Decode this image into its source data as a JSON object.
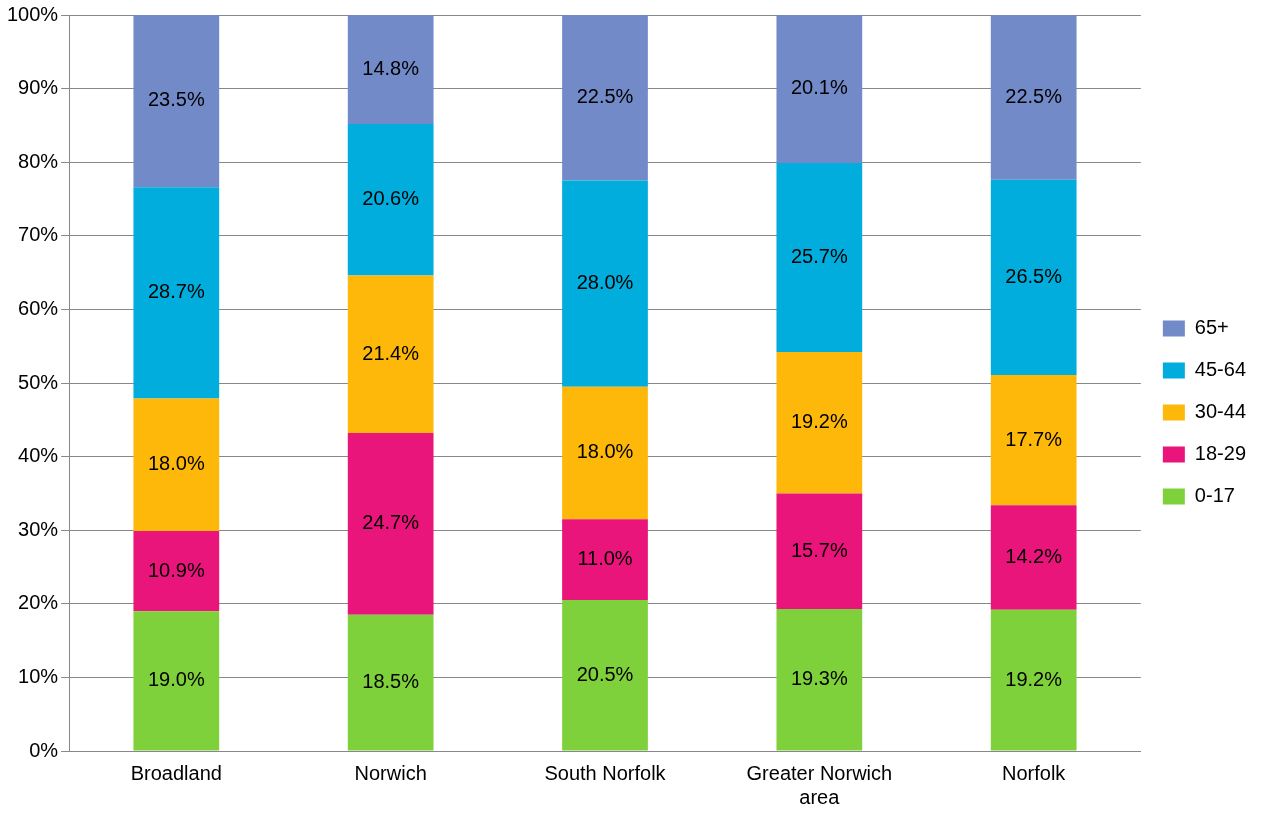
{
  "chart_data": {
    "type": "bar",
    "stacked": true,
    "categories": [
      "Broadland",
      "Norwich",
      "South Norfolk",
      "Greater Norwich area",
      "Norfolk"
    ],
    "series": [
      {
        "name": "0-17",
        "color": "#7fd13b",
        "values": [
          19.0,
          18.5,
          20.5,
          19.3,
          19.2
        ],
        "value_labels": [
          "19.0%",
          "18.5%",
          "20.5%",
          "19.3%",
          "19.2%"
        ]
      },
      {
        "name": "18-29",
        "color": "#ea157a",
        "values": [
          10.9,
          24.7,
          11.0,
          15.7,
          14.2
        ],
        "value_labels": [
          "10.9%",
          "24.7%",
          "11.0%",
          "15.7%",
          "14.2%"
        ]
      },
      {
        "name": "30-44",
        "color": "#feb80a",
        "values": [
          18.0,
          21.4,
          18.0,
          19.2,
          17.7
        ],
        "value_labels": [
          "18.0%",
          "21.4%",
          "18.0%",
          "19.2%",
          "17.7%"
        ]
      },
      {
        "name": "45-64",
        "color": "#00addc",
        "values": [
          28.7,
          20.6,
          28.0,
          25.7,
          26.5
        ],
        "value_labels": [
          "28.7%",
          "20.6%",
          "28.0%",
          "25.7%",
          "26.5%"
        ]
      },
      {
        "name": "65+",
        "color": "#738ac8",
        "values": [
          23.5,
          14.8,
          22.5,
          20.1,
          22.5
        ],
        "value_labels": [
          "23.5%",
          "14.8%",
          "22.5%",
          "20.1%",
          "22.5%"
        ]
      }
    ],
    "ylim": [
      0,
      100
    ],
    "yticks": [
      {
        "value": 0,
        "label": "0%"
      },
      {
        "value": 10,
        "label": "10%"
      },
      {
        "value": 20,
        "label": "20%"
      },
      {
        "value": 30,
        "label": "30%"
      },
      {
        "value": 40,
        "label": "40%"
      },
      {
        "value": 50,
        "label": "50%"
      },
      {
        "value": 60,
        "label": "60%"
      },
      {
        "value": 70,
        "label": "70%"
      },
      {
        "value": 80,
        "label": "80%"
      },
      {
        "value": 90,
        "label": "90%"
      },
      {
        "value": 100,
        "label": "100%"
      }
    ],
    "grid": "y",
    "legend": "right"
  }
}
